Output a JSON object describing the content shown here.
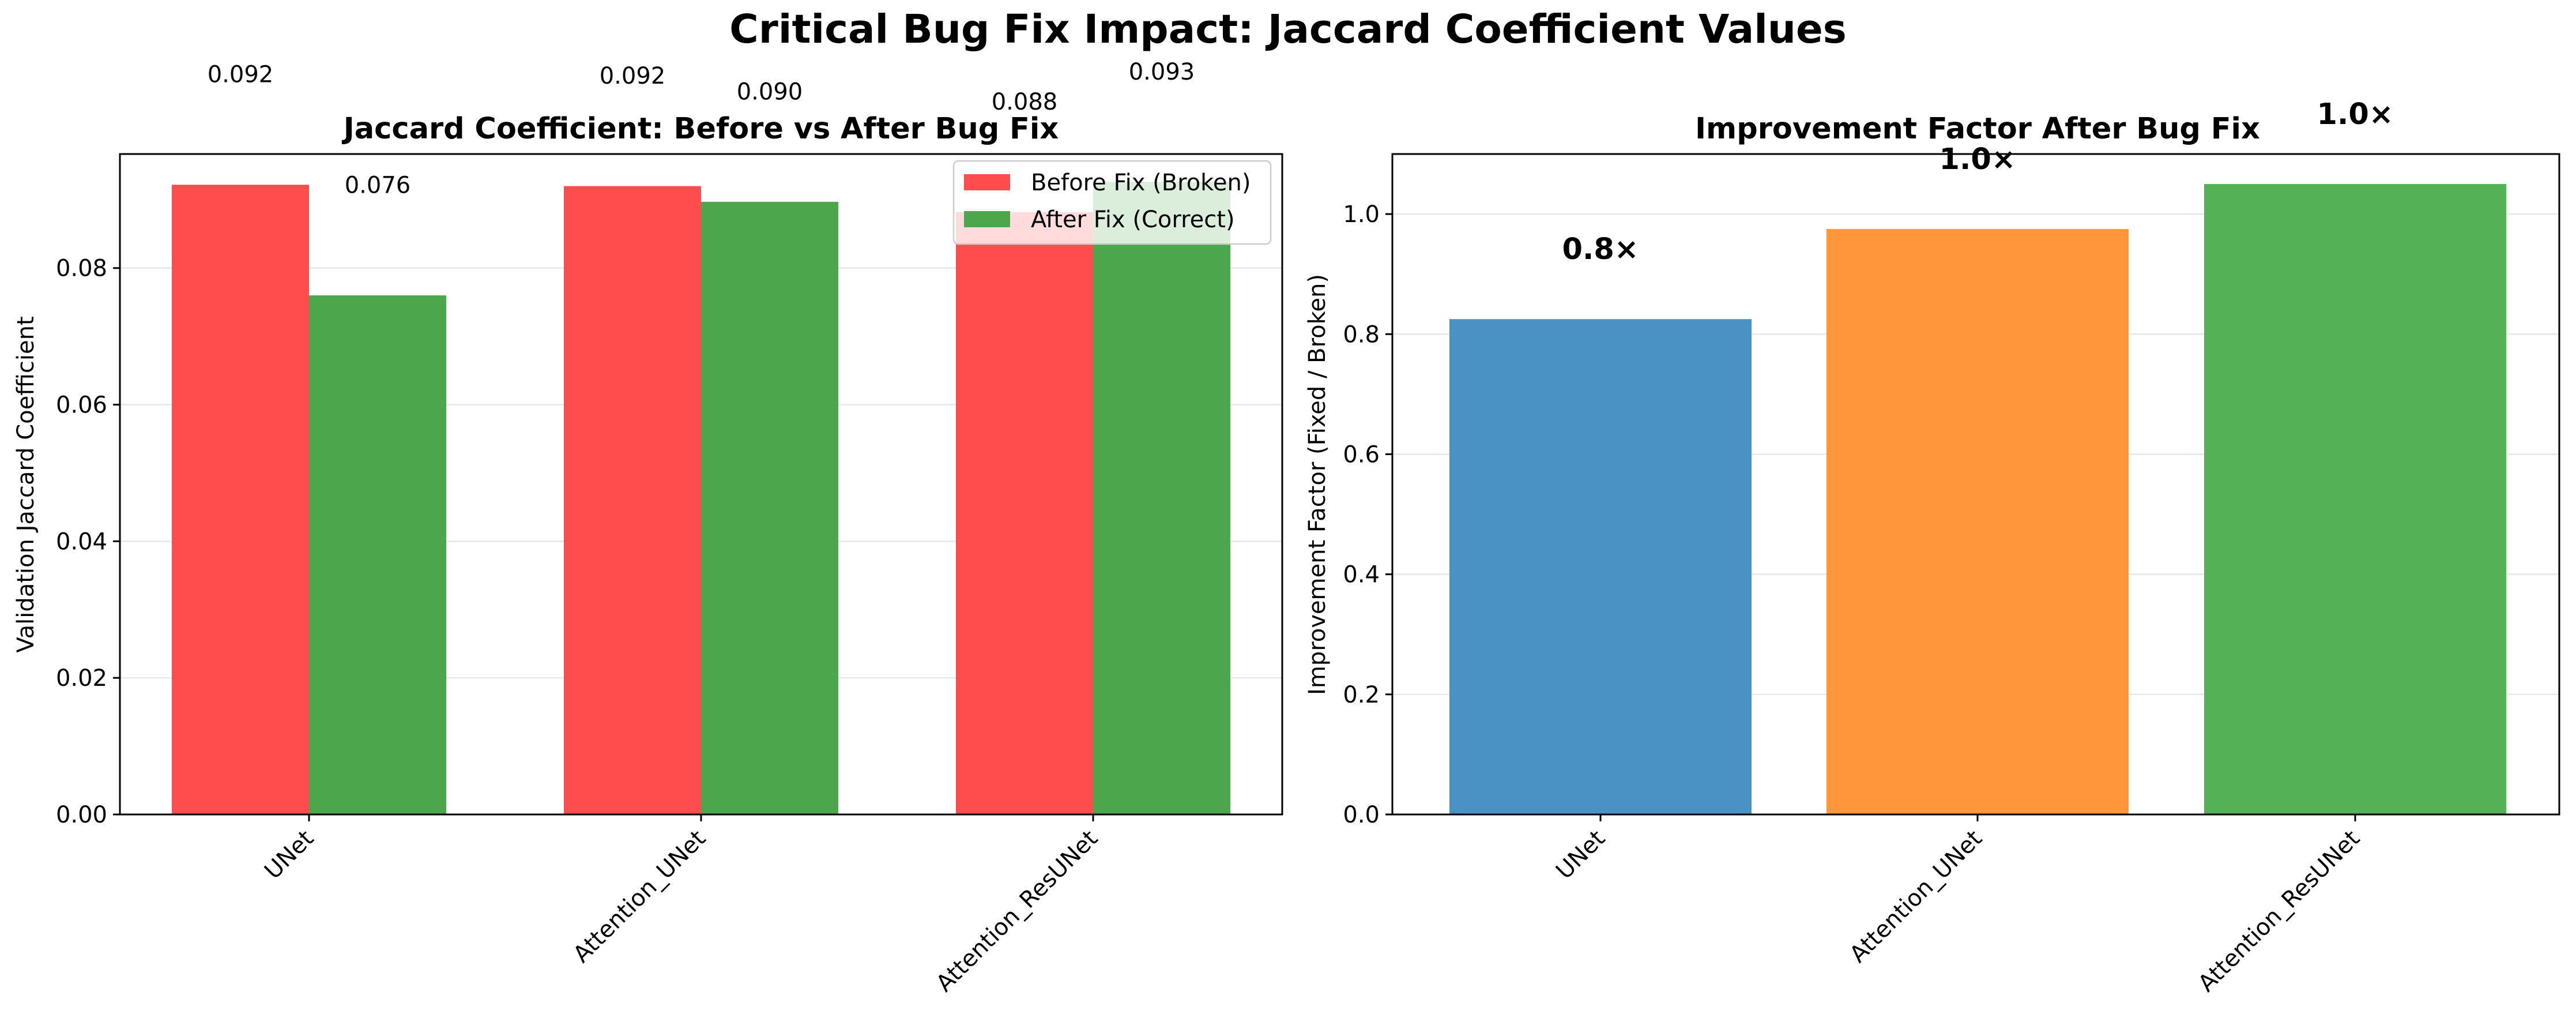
{
  "figure": {
    "title": "Critical Bug Fix Impact: Jaccard Coefficient Values"
  },
  "chart_data": [
    {
      "type": "bar",
      "title": "Jaccard Coefficient: Before vs After Bug Fix",
      "xlabel": "",
      "ylabel": "Validation Jaccard Coefficient",
      "categories": [
        "UNet",
        "Attention_UNet",
        "Attention_ResUNet"
      ],
      "series": [
        {
          "name": "Before Fix (Broken)",
          "color": "#ff4c4c",
          "values": [
            0.0922,
            0.092,
            0.0882
          ],
          "labels": [
            "0.092",
            "0.092",
            "0.088"
          ]
        },
        {
          "name": "After Fix (Correct)",
          "color": "#4ca64c",
          "values": [
            0.076,
            0.0897,
            0.0926
          ],
          "labels": [
            "0.076",
            "0.090",
            "0.093"
          ]
        }
      ],
      "ylim": [
        0,
        0.0967
      ],
      "yticks": [
        0.0,
        0.02,
        0.04,
        0.06,
        0.08
      ],
      "ytick_labels": [
        "0.00",
        "0.02",
        "0.04",
        "0.06",
        "0.08"
      ],
      "grid": "y",
      "legend": "upper right"
    },
    {
      "type": "bar",
      "title": "Improvement Factor After Bug Fix",
      "xlabel": "",
      "ylabel": "Improvement Factor (Fixed / Broken)",
      "categories": [
        "UNet",
        "Attention_UNet",
        "Attention_ResUNet"
      ],
      "values": [
        0.825,
        0.975,
        1.05
      ],
      "labels": [
        "0.8×",
        "1.0×",
        "1.0×"
      ],
      "colors": [
        "#4a91c4",
        "#ff963c",
        "#55b155"
      ],
      "ylim": [
        0,
        1.1
      ],
      "yticks": [
        0.0,
        0.2,
        0.4,
        0.6,
        0.8,
        1.0
      ],
      "ytick_labels": [
        "0.0",
        "0.2",
        "0.4",
        "0.6",
        "0.8",
        "1.0"
      ],
      "grid": "y"
    }
  ]
}
